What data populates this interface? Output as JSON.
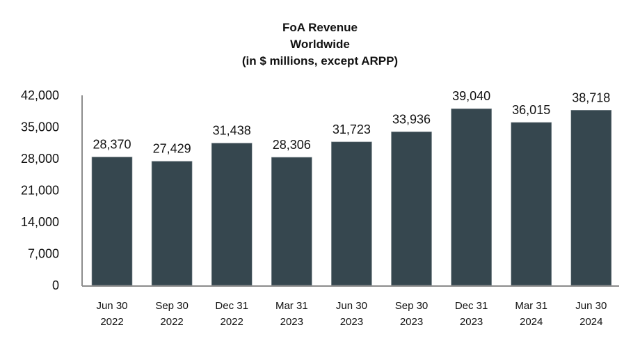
{
  "chart_data": {
    "type": "bar",
    "title": [
      "FoA Revenue",
      "Worldwide",
      "(in $ millions, except ARPP)"
    ],
    "categories": [
      [
        "Jun 30",
        "2022"
      ],
      [
        "Sep 30",
        "2022"
      ],
      [
        "Dec 31",
        "2022"
      ],
      [
        "Mar 31",
        "2023"
      ],
      [
        "Jun 30",
        "2023"
      ],
      [
        "Sep 30",
        "2023"
      ],
      [
        "Dec 31",
        "2023"
      ],
      [
        "Mar 31",
        "2024"
      ],
      [
        "Jun 30",
        "2024"
      ]
    ],
    "values": [
      28370,
      27429,
      31438,
      28306,
      31723,
      33936,
      39040,
      36015,
      38718
    ],
    "data_labels": [
      "28,370",
      "27,429",
      "31,438",
      "28,306",
      "31,723",
      "33,936",
      "39,040",
      "36,015",
      "38,718"
    ],
    "y_ticks": [
      "0",
      "7,000",
      "14,000",
      "21,000",
      "28,000",
      "35,000",
      "42,000"
    ],
    "y_tick_values": [
      0,
      7000,
      14000,
      21000,
      28000,
      35000,
      42000
    ],
    "ylim": [
      0,
      42000
    ],
    "xlabel": "",
    "ylabel": "",
    "grid": false,
    "legend": "none",
    "bar_color": "#36474f",
    "axis_color": "#8c8c8c"
  }
}
